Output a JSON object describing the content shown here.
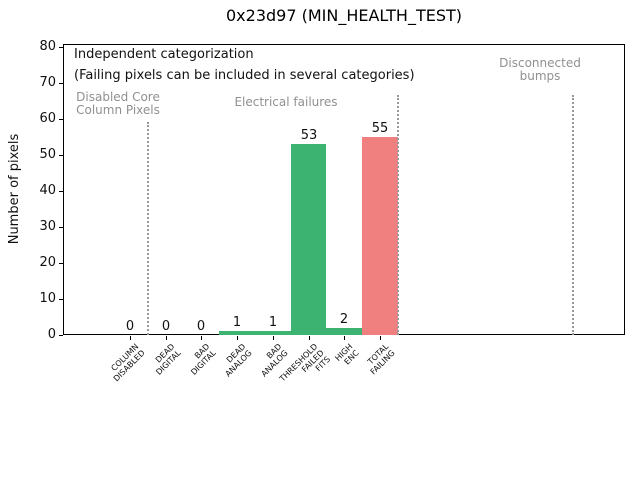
{
  "chart_data": {
    "type": "bar",
    "title": "0x23d97 (MIN_HEALTH_TEST)",
    "ylabel": "Number of pixels",
    "xlabel": "",
    "categories": [
      "COLUMN\nDISABLED",
      "DEAD\nDIGITAL",
      "BAD\nDIGITAL",
      "DEAD\nANALOG",
      "BAD\nANALOG",
      "THRESHOLD\nFAILED\nFITS",
      "HIGH\nENC",
      "TOTAL\nFAILING"
    ],
    "values": [
      0,
      0,
      0,
      1,
      1,
      53,
      2,
      55
    ],
    "bar_colors": [
      "#3CB371",
      "#3CB371",
      "#3CB371",
      "#3CB371",
      "#3CB371",
      "#3CB371",
      "#3CB371",
      "#F08080"
    ],
    "yticks": [
      0,
      10,
      20,
      30,
      40,
      50,
      60,
      70,
      80
    ],
    "ylim": [
      0,
      80.8
    ],
    "grid": false,
    "legend": null,
    "annotations": {
      "note_line1": "Independent categorization",
      "note_line2": "(Failing pixels can be included in several categories)",
      "sections": [
        {
          "label": "Disabled Core\nColumn Pixels"
        },
        {
          "label": "Electrical failures"
        },
        {
          "label": "Disconnected\nbumps"
        }
      ],
      "separators_x_categories": [
        0.5,
        7.5,
        12.4
      ]
    },
    "colors": {
      "bar_green": "#3CB371",
      "bar_red": "#F08080",
      "section_text": "#909090",
      "separator": "#999999",
      "axis": "#000000",
      "background": "#ffffff"
    }
  }
}
